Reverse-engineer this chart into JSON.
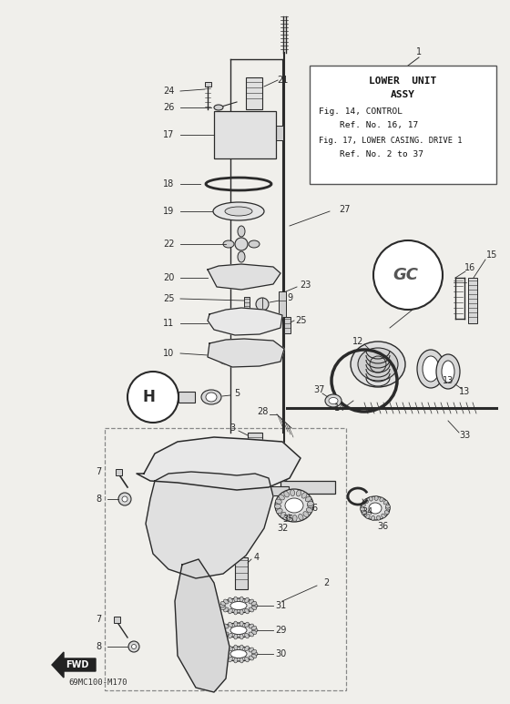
{
  "bg_color": "#f0efeb",
  "part_color": "#2a2a2a",
  "line_color": "#3a3a3a",
  "part_code": "69MC100-M170",
  "box_text_lines": [
    "LOWER  UNIT",
    "ASSY",
    "Fig. 14, CONTROL",
    "    Ref. No. 16, 17",
    "Fig. 17, LOWER CASING. DRIVE 1",
    "    Ref. No. 2 to 37"
  ]
}
